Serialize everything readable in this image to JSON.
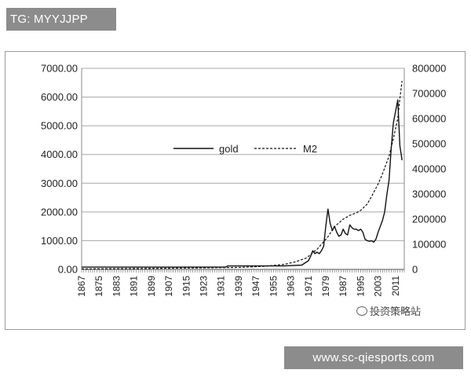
{
  "header": {
    "badge_text": "TG: MYYJJPP"
  },
  "footer": {
    "url_text": "www.sc-qiesports.com"
  },
  "watermark": {
    "text": "投资策略站"
  },
  "chart_data": {
    "type": "line",
    "title": "",
    "xlabel": "",
    "ylabel": "",
    "x_tick_labels": [
      "1867",
      "1875",
      "1883",
      "1891",
      "1899",
      "1907",
      "1915",
      "1923",
      "1931",
      "1939",
      "1947",
      "1955",
      "1963",
      "1971",
      "1979",
      "1987",
      "1995",
      "2003",
      "2011"
    ],
    "xlim": [
      1867,
      2015
    ],
    "y_left": {
      "ylim": [
        0,
        7000
      ],
      "tick_labels": [
        "0.00",
        "1000.00",
        "2000.00",
        "3000.00",
        "4000.00",
        "5000.00",
        "6000.00",
        "7000.00"
      ]
    },
    "y_right": {
      "ylim": [
        0,
        800000
      ],
      "tick_labels": [
        "0",
        "100000",
        "200000",
        "300000",
        "400000",
        "500000",
        "600000",
        "700000",
        "800000"
      ]
    },
    "grid": true,
    "legend": {
      "placement": "center",
      "entries": [
        "gold",
        "M2"
      ]
    },
    "series": [
      {
        "name": "gold",
        "axis": "left",
        "style": "solid",
        "x": [
          1867,
          1900,
          1933,
          1934,
          1960,
          1968,
          1971,
          1972,
          1973,
          1974,
          1975,
          1976,
          1977,
          1978,
          1979,
          1980,
          1981,
          1982,
          1983,
          1984,
          1985,
          1986,
          1987,
          1988,
          1989,
          1990,
          1991,
          1992,
          1993,
          1994,
          1995,
          1996,
          1997,
          1998,
          1999,
          2000,
          2001,
          2002,
          2003,
          2004,
          2005,
          2006,
          2007,
          2008,
          2009,
          2010,
          2011,
          2012,
          2013,
          2014
        ],
        "y": [
          80,
          80,
          80,
          120,
          120,
          150,
          300,
          450,
          650,
          550,
          600,
          550,
          650,
          800,
          1500,
          2100,
          1600,
          1350,
          1500,
          1300,
          1150,
          1200,
          1400,
          1250,
          1200,
          1550,
          1450,
          1400,
          1400,
          1350,
          1400,
          1300,
          1050,
          1000,
          980,
          1000,
          950,
          1050,
          1300,
          1500,
          1700,
          2000,
          2600,
          3100,
          4200,
          5100,
          5500,
          5900,
          4300,
          3800
        ]
      },
      {
        "name": "M2",
        "axis": "right",
        "style": "dashed",
        "x": [
          1867,
          1900,
          1920,
          1940,
          1950,
          1960,
          1965,
          1970,
          1975,
          1978,
          1980,
          1983,
          1985,
          1987,
          1990,
          1993,
          1995,
          1998,
          2000,
          2003,
          2005,
          2008,
          2010,
          2012,
          2013,
          2014
        ],
        "y": [
          2000,
          4000,
          6000,
          8000,
          12000,
          20000,
          30000,
          45000,
          80000,
          110000,
          130000,
          170000,
          185000,
          200000,
          215000,
          225000,
          235000,
          260000,
          290000,
          340000,
          380000,
          450000,
          520000,
          600000,
          680000,
          750000
        ]
      }
    ]
  }
}
